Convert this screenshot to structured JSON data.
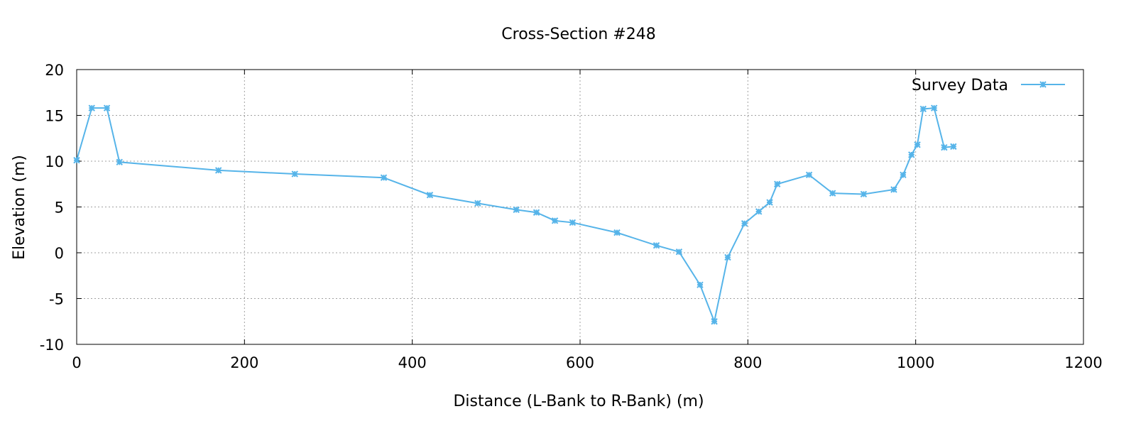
{
  "chart_data": {
    "type": "line",
    "title": "Cross-Section #248",
    "xlabel": "Distance (L-Bank to R-Bank) (m)",
    "ylabel": "Elevation (m)",
    "xlim": [
      0,
      1200
    ],
    "ylim": [
      -10,
      20
    ],
    "xticks": [
      0,
      200,
      400,
      600,
      800,
      1000,
      1200
    ],
    "yticks": [
      -10,
      -5,
      0,
      5,
      10,
      15,
      20
    ],
    "grid": true,
    "legend_position": "top-right",
    "series": [
      {
        "name": "Survey Data",
        "color": "#56b4e9",
        "marker": "asterisk",
        "x": [
          0,
          18,
          36,
          51,
          169,
          260,
          366,
          421,
          478,
          524,
          548,
          570,
          591,
          644,
          691,
          718,
          743,
          760,
          776,
          796,
          813,
          826,
          835,
          873,
          901,
          938,
          974,
          985,
          995,
          1002,
          1009,
          1022,
          1034,
          1045
        ],
        "y": [
          10.1,
          15.8,
          15.8,
          9.9,
          9.0,
          8.6,
          8.2,
          6.3,
          5.4,
          4.7,
          4.4,
          3.5,
          3.3,
          2.2,
          0.8,
          0.1,
          -3.5,
          -7.5,
          -0.5,
          3.2,
          4.5,
          5.5,
          7.5,
          8.5,
          6.5,
          6.4,
          6.9,
          8.5,
          10.7,
          11.8,
          15.7,
          15.8,
          11.5,
          11.6
        ]
      }
    ]
  }
}
